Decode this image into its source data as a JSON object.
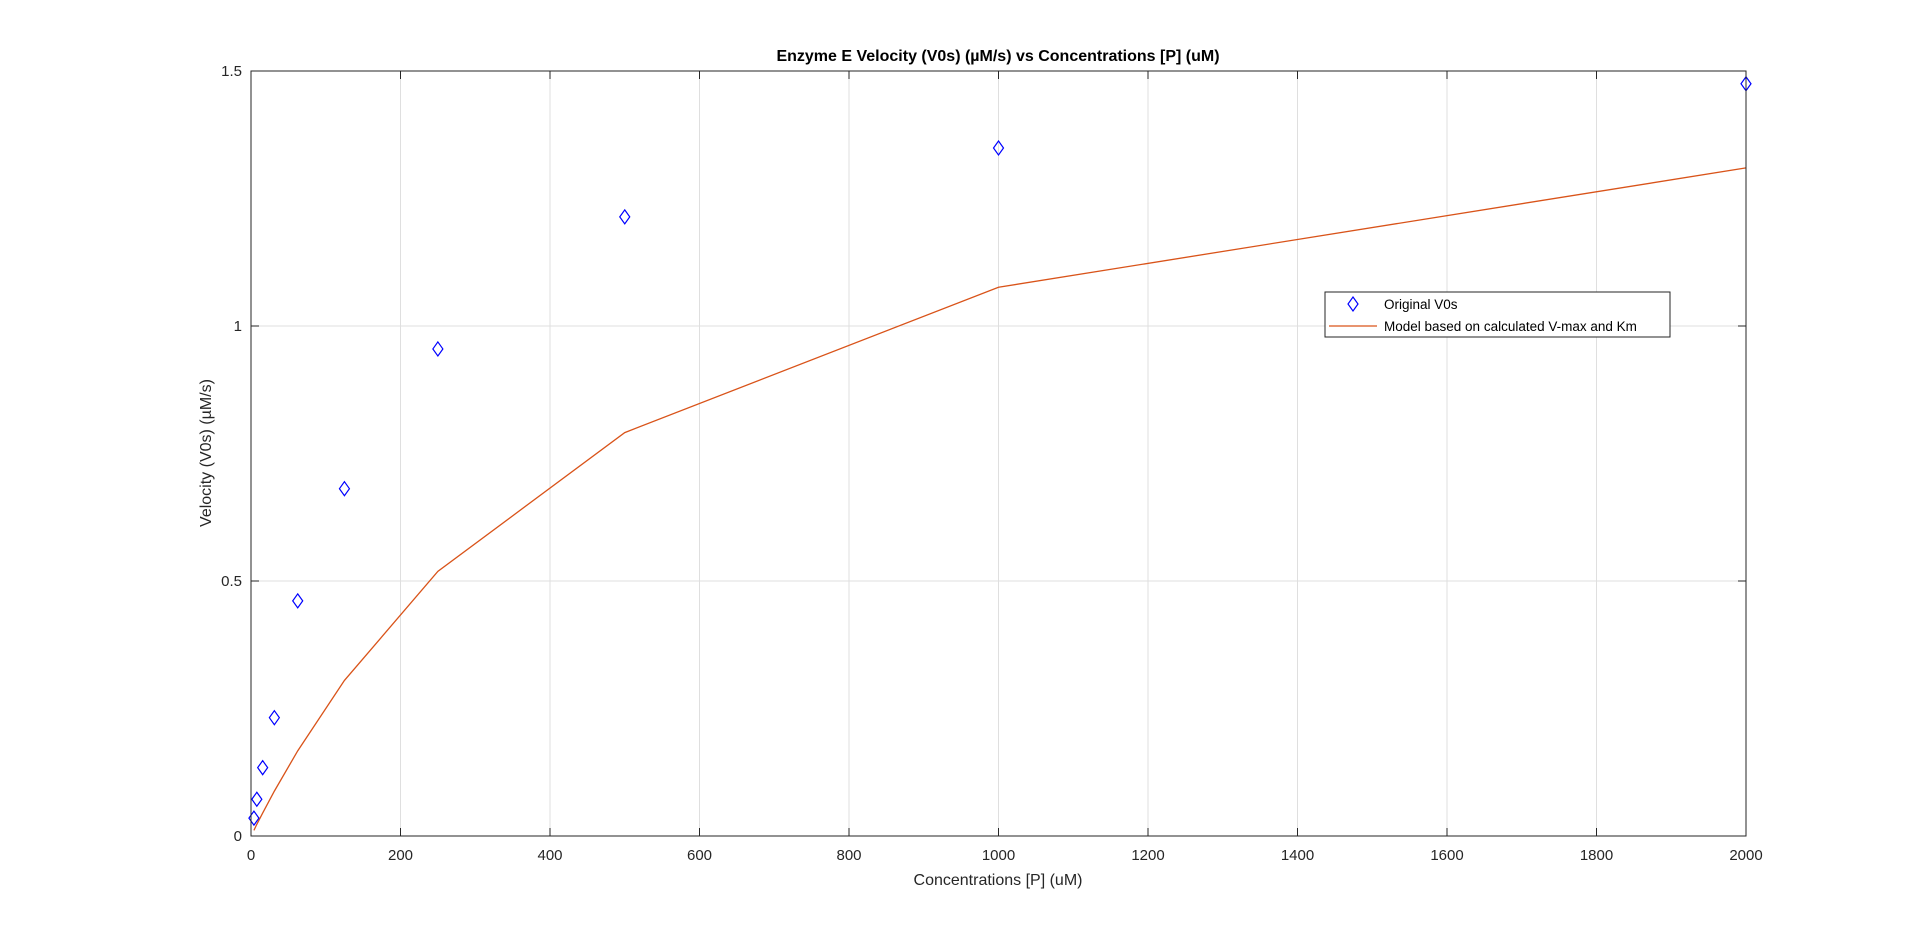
{
  "chart_data": {
    "type": "line",
    "title": "Enzyme E Velocity (V0s) (µM/s) vs Concentrations [P] (uM)",
    "xlabel": "Concentrations [P] (uM)",
    "ylabel": "Velocity (V0s) (µM/s)",
    "xlim": [
      0,
      2000
    ],
    "ylim": [
      0,
      1.5
    ],
    "xticks": [
      0,
      200,
      400,
      600,
      800,
      1000,
      1200,
      1400,
      1600,
      1800,
      2000
    ],
    "yticks": [
      0,
      0.5,
      1,
      1.5
    ],
    "xtick_labels": [
      "0",
      "200",
      "400",
      "600",
      "800",
      "1000",
      "1200",
      "1400",
      "1600",
      "1800",
      "2000"
    ],
    "ytick_labels": [
      "0",
      "0.5",
      "1",
      "1.5"
    ],
    "grid": true,
    "legend_position": "right",
    "series": [
      {
        "name": "Original V0s",
        "type": "scatter",
        "marker": "diamond",
        "color": "#0000ff",
        "x": [
          3.9,
          7.8,
          15.6,
          31.25,
          62.5,
          125,
          250,
          500,
          1000,
          2000
        ],
        "y": [
          0.035,
          0.072,
          0.134,
          0.232,
          0.461,
          0.681,
          0.955,
          1.214,
          1.349,
          1.475
        ]
      },
      {
        "name": "Model based on calculated V-max and Km",
        "type": "line",
        "color": "#d95319",
        "x": [
          3.9,
          7.8,
          15.6,
          31.25,
          62.5,
          125,
          250,
          500,
          1000,
          2000
        ],
        "y": [
          0.011,
          0.023,
          0.045,
          0.088,
          0.167,
          0.305,
          0.519,
          0.791,
          1.076,
          1.31
        ]
      }
    ]
  }
}
